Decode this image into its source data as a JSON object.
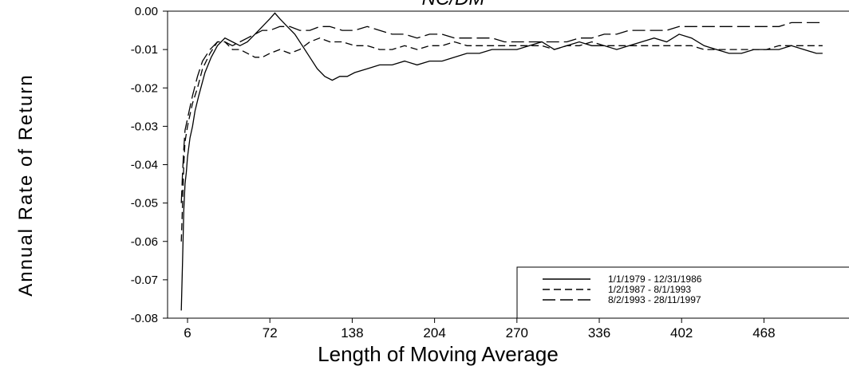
{
  "chart_data": {
    "type": "line",
    "title": "NC/DM",
    "xlabel": "Length of Moving Average",
    "ylabel": "Annual Rate of Return",
    "x_ticks": [
      6,
      72,
      138,
      204,
      270,
      336,
      402,
      468
    ],
    "y_ticks": [
      "0.00",
      "-0.01",
      "-0.02",
      "-0.03",
      "-0.04",
      "-0.05",
      "-0.06",
      "-0.07",
      "-0.08"
    ],
    "xlim": [
      -10,
      540
    ],
    "ylim": [
      -0.08,
      0.0
    ],
    "grid": false,
    "legend_position": "bottom-right",
    "series": [
      {
        "name": "1/1/1979 - 12/31/1986",
        "style": "solid",
        "points": [
          [
            1,
            -0.078
          ],
          [
            2,
            -0.065
          ],
          [
            3,
            -0.052
          ],
          [
            4,
            -0.045
          ],
          [
            5,
            -0.042
          ],
          [
            6,
            -0.038
          ],
          [
            8,
            -0.033
          ],
          [
            10,
            -0.03
          ],
          [
            12,
            -0.026
          ],
          [
            15,
            -0.022
          ],
          [
            20,
            -0.016
          ],
          [
            25,
            -0.012
          ],
          [
            30,
            -0.009
          ],
          [
            36,
            -0.007
          ],
          [
            42,
            -0.008
          ],
          [
            48,
            -0.009
          ],
          [
            54,
            -0.008
          ],
          [
            60,
            -0.006
          ],
          [
            66,
            -0.004
          ],
          [
            72,
            -0.002
          ],
          [
            76,
            -0.0005
          ],
          [
            80,
            -0.002
          ],
          [
            86,
            -0.004
          ],
          [
            92,
            -0.006
          ],
          [
            98,
            -0.009
          ],
          [
            104,
            -0.012
          ],
          [
            110,
            -0.015
          ],
          [
            116,
            -0.017
          ],
          [
            122,
            -0.018
          ],
          [
            128,
            -0.017
          ],
          [
            134,
            -0.017
          ],
          [
            140,
            -0.016
          ],
          [
            150,
            -0.015
          ],
          [
            160,
            -0.014
          ],
          [
            170,
            -0.014
          ],
          [
            180,
            -0.013
          ],
          [
            190,
            -0.014
          ],
          [
            200,
            -0.013
          ],
          [
            210,
            -0.013
          ],
          [
            220,
            -0.012
          ],
          [
            230,
            -0.011
          ],
          [
            240,
            -0.011
          ],
          [
            250,
            -0.01
          ],
          [
            260,
            -0.01
          ],
          [
            270,
            -0.01
          ],
          [
            280,
            -0.009
          ],
          [
            290,
            -0.008
          ],
          [
            300,
            -0.01
          ],
          [
            310,
            -0.009
          ],
          [
            320,
            -0.008
          ],
          [
            330,
            -0.009
          ],
          [
            340,
            -0.009
          ],
          [
            350,
            -0.01
          ],
          [
            360,
            -0.009
          ],
          [
            370,
            -0.008
          ],
          [
            380,
            -0.007
          ],
          [
            390,
            -0.008
          ],
          [
            400,
            -0.006
          ],
          [
            410,
            -0.007
          ],
          [
            420,
            -0.009
          ],
          [
            430,
            -0.01
          ],
          [
            440,
            -0.011
          ],
          [
            450,
            -0.011
          ],
          [
            460,
            -0.01
          ],
          [
            470,
            -0.01
          ],
          [
            480,
            -0.01
          ],
          [
            490,
            -0.009
          ],
          [
            500,
            -0.01
          ],
          [
            510,
            -0.011
          ],
          [
            515,
            -0.011
          ]
        ]
      },
      {
        "name": "1/2/1987 - 8/1/1993",
        "style": "dashed",
        "points": [
          [
            1,
            -0.06
          ],
          [
            2,
            -0.05
          ],
          [
            3,
            -0.04
          ],
          [
            4,
            -0.034
          ],
          [
            6,
            -0.03
          ],
          [
            8,
            -0.027
          ],
          [
            10,
            -0.024
          ],
          [
            14,
            -0.02
          ],
          [
            18,
            -0.015
          ],
          [
            24,
            -0.011
          ],
          [
            30,
            -0.008
          ],
          [
            36,
            -0.008
          ],
          [
            42,
            -0.01
          ],
          [
            48,
            -0.01
          ],
          [
            54,
            -0.011
          ],
          [
            60,
            -0.012
          ],
          [
            66,
            -0.012
          ],
          [
            72,
            -0.011
          ],
          [
            80,
            -0.01
          ],
          [
            88,
            -0.011
          ],
          [
            96,
            -0.01
          ],
          [
            104,
            -0.008
          ],
          [
            112,
            -0.007
          ],
          [
            120,
            -0.008
          ],
          [
            130,
            -0.008
          ],
          [
            140,
            -0.009
          ],
          [
            150,
            -0.009
          ],
          [
            160,
            -0.01
          ],
          [
            170,
            -0.01
          ],
          [
            180,
            -0.009
          ],
          [
            190,
            -0.01
          ],
          [
            200,
            -0.009
          ],
          [
            210,
            -0.009
          ],
          [
            220,
            -0.008
          ],
          [
            230,
            -0.009
          ],
          [
            240,
            -0.009
          ],
          [
            250,
            -0.009
          ],
          [
            260,
            -0.009
          ],
          [
            270,
            -0.009
          ],
          [
            280,
            -0.009
          ],
          [
            290,
            -0.009
          ],
          [
            300,
            -0.01
          ],
          [
            310,
            -0.009
          ],
          [
            320,
            -0.009
          ],
          [
            330,
            -0.008
          ],
          [
            340,
            -0.009
          ],
          [
            350,
            -0.009
          ],
          [
            360,
            -0.009
          ],
          [
            370,
            -0.009
          ],
          [
            380,
            -0.009
          ],
          [
            390,
            -0.009
          ],
          [
            400,
            -0.009
          ],
          [
            410,
            -0.009
          ],
          [
            420,
            -0.01
          ],
          [
            430,
            -0.01
          ],
          [
            440,
            -0.01
          ],
          [
            450,
            -0.01
          ],
          [
            460,
            -0.01
          ],
          [
            470,
            -0.01
          ],
          [
            480,
            -0.009
          ],
          [
            490,
            -0.009
          ],
          [
            500,
            -0.009
          ],
          [
            510,
            -0.009
          ],
          [
            515,
            -0.009
          ]
        ]
      },
      {
        "name": "8/2/1993 - 28/11/1997",
        "style": "long-dashed",
        "points": [
          [
            1,
            -0.05
          ],
          [
            2,
            -0.042
          ],
          [
            3,
            -0.036
          ],
          [
            4,
            -0.031
          ],
          [
            6,
            -0.028
          ],
          [
            8,
            -0.025
          ],
          [
            10,
            -0.022
          ],
          [
            14,
            -0.017
          ],
          [
            18,
            -0.013
          ],
          [
            24,
            -0.01
          ],
          [
            30,
            -0.008
          ],
          [
            36,
            -0.008
          ],
          [
            42,
            -0.009
          ],
          [
            48,
            -0.008
          ],
          [
            54,
            -0.007
          ],
          [
            60,
            -0.006
          ],
          [
            66,
            -0.005
          ],
          [
            72,
            -0.005
          ],
          [
            80,
            -0.004
          ],
          [
            88,
            -0.004
          ],
          [
            96,
            -0.005
          ],
          [
            104,
            -0.005
          ],
          [
            112,
            -0.004
          ],
          [
            120,
            -0.004
          ],
          [
            130,
            -0.005
          ],
          [
            140,
            -0.005
          ],
          [
            150,
            -0.004
          ],
          [
            160,
            -0.005
          ],
          [
            170,
            -0.006
          ],
          [
            180,
            -0.006
          ],
          [
            190,
            -0.007
          ],
          [
            200,
            -0.006
          ],
          [
            210,
            -0.006
          ],
          [
            220,
            -0.007
          ],
          [
            230,
            -0.007
          ],
          [
            240,
            -0.007
          ],
          [
            250,
            -0.007
          ],
          [
            260,
            -0.008
          ],
          [
            270,
            -0.008
          ],
          [
            280,
            -0.008
          ],
          [
            290,
            -0.008
          ],
          [
            300,
            -0.008
          ],
          [
            310,
            -0.008
          ],
          [
            320,
            -0.007
          ],
          [
            330,
            -0.007
          ],
          [
            340,
            -0.006
          ],
          [
            350,
            -0.006
          ],
          [
            360,
            -0.005
          ],
          [
            370,
            -0.005
          ],
          [
            380,
            -0.005
          ],
          [
            390,
            -0.005
          ],
          [
            400,
            -0.004
          ],
          [
            410,
            -0.004
          ],
          [
            420,
            -0.004
          ],
          [
            430,
            -0.004
          ],
          [
            440,
            -0.004
          ],
          [
            450,
            -0.004
          ],
          [
            460,
            -0.004
          ],
          [
            470,
            -0.004
          ],
          [
            480,
            -0.004
          ],
          [
            490,
            -0.003
          ],
          [
            500,
            -0.003
          ],
          [
            510,
            -0.003
          ],
          [
            515,
            -0.003
          ]
        ]
      }
    ]
  }
}
